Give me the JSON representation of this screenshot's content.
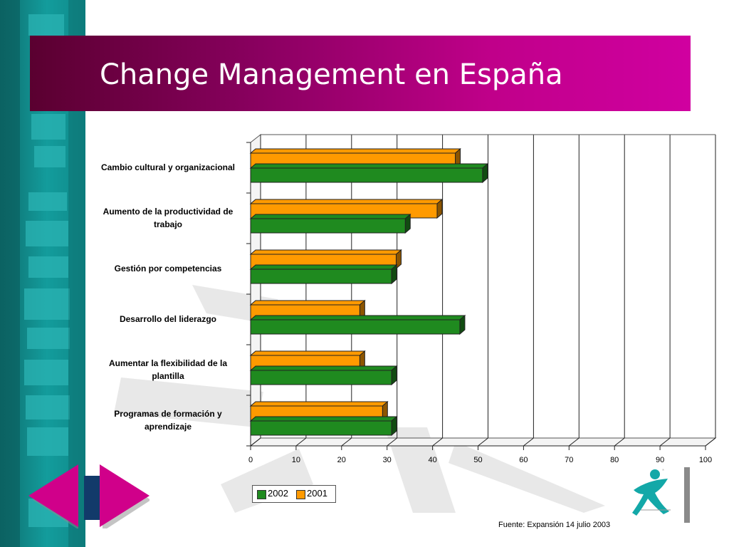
{
  "slide": {
    "title": "Change Management en España",
    "source": "Fuente: Expansión 14 julio 2003"
  },
  "colors": {
    "series_2002": "#1f8a1f",
    "series_2001": "#ff9a00",
    "title_bar_start": "#5a0030",
    "title_bar_end": "#d000a0",
    "sidebar": "#139c9c"
  },
  "legend": {
    "items": [
      {
        "label": "2002",
        "color": "#1f8a1f"
      },
      {
        "label": "2001",
        "color": "#ff9a00"
      }
    ]
  },
  "nav": {
    "prev_icon": "triangle-left-icon",
    "next_icon": "triangle-right-icon"
  },
  "chart_data": {
    "type": "bar",
    "orientation": "horizontal",
    "title": "",
    "xlabel": "",
    "ylabel": "",
    "xlim": [
      0,
      100
    ],
    "xticks": [
      0,
      10,
      20,
      30,
      40,
      50,
      60,
      70,
      80,
      90,
      100
    ],
    "grid": true,
    "legend_position": "bottom-left",
    "categories": [
      "Cambio cultural y organizacional",
      "Aumento de la productividad de trabajo",
      "Gestión por competencias",
      "Desarrollo del liderazgo",
      "Aumentar la flexibilidad de la plantilla",
      "Programas de formación y aprendizaje"
    ],
    "category_lines": [
      [
        "Cambio cultural y organizacional"
      ],
      [
        "Aumento de la productividad de",
        "trabajo"
      ],
      [
        "Gestión por competencias"
      ],
      [
        "Desarrollo del liderazgo"
      ],
      [
        "Aumentar la flexibilidad de la",
        "plantilla"
      ],
      [
        "Programas de formación y",
        "aprendizaje"
      ]
    ],
    "series": [
      {
        "name": "2002",
        "values": [
          51,
          34,
          31,
          46,
          31,
          31
        ]
      },
      {
        "name": "2001",
        "values": [
          45,
          41,
          32,
          24,
          24,
          29
        ]
      }
    ]
  }
}
